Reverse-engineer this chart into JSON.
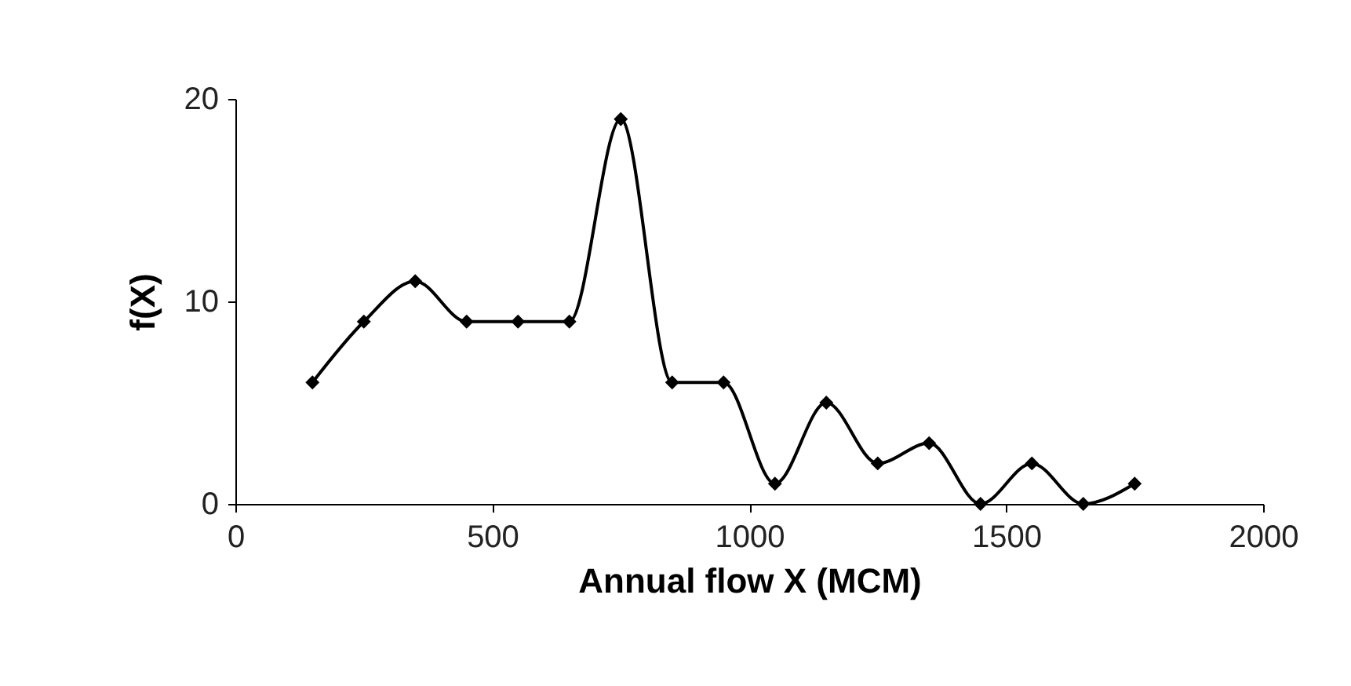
{
  "chart_data": {
    "type": "line",
    "xlabel": "Annual flow  X (MCM)",
    "ylabel": "f(X)",
    "x": [
      150,
      250,
      350,
      450,
      550,
      650,
      750,
      850,
      950,
      1050,
      1150,
      1250,
      1350,
      1450,
      1550,
      1650,
      1750
    ],
    "series": [
      {
        "color": "#000000",
        "values": [
          6,
          9,
          11,
          9,
          9,
          9,
          19,
          6,
          6,
          1,
          5,
          2,
          3,
          0,
          2,
          0,
          1
        ]
      }
    ],
    "xlim": [
      0,
      2000
    ],
    "xticks": [
      0,
      500,
      1000,
      1500,
      2000
    ],
    "ylim": [
      0,
      20
    ],
    "yticks": [
      0,
      10,
      20
    ],
    "grid": false,
    "marker": "diamond",
    "line_style": "solid"
  }
}
